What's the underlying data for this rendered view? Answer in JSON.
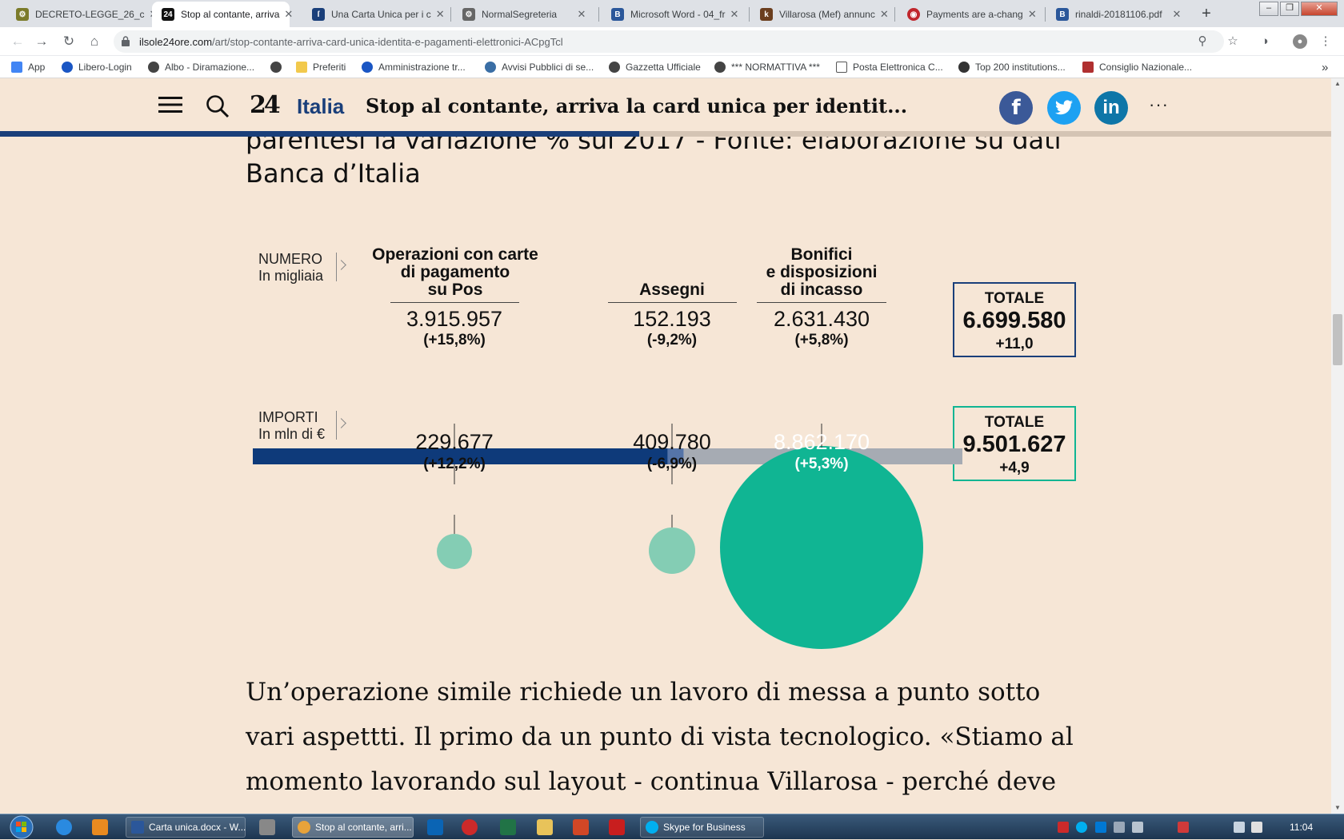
{
  "browser": {
    "tabs": [
      {
        "label": "DECRETO-LEGGE_26_c",
        "color": "#7b7b2a",
        "active": false
      },
      {
        "label": "Stop al contante, arriva",
        "color": "#111111",
        "active": true
      },
      {
        "label": "Una Carta Unica per i c",
        "color": "#1a3f7a",
        "active": false
      },
      {
        "label": "NormalSegreteria",
        "color": "#555555",
        "active": false
      },
      {
        "label": "Microsoft Word - 04_fr",
        "color": "#2b579a",
        "active": false
      },
      {
        "label": "Villarosa (Mef) annunc",
        "color": "#6b3e1e",
        "active": false
      },
      {
        "label": "Payments are a-chang",
        "color": "#c0262c",
        "active": false
      },
      {
        "label": "rinaldi-20181106.pdf",
        "color": "#2b579a",
        "active": false
      }
    ],
    "new_tab": "+",
    "url_domain": "ilsole24ore.com",
    "url_path": "/art/stop-contante-arriva-card-unica-identita-e-pagamenti-elettronici-ACpgTcl",
    "bookmarks": [
      {
        "label": "App",
        "color": "#4285f4"
      },
      {
        "label": "Libero-Login",
        "color": "#1a56c4"
      },
      {
        "label": "Albo - Diramazione...",
        "color": "#444444"
      },
      {
        "label": "",
        "color": "#444444"
      },
      {
        "label": "Preferiti",
        "color": "#f2c94c"
      },
      {
        "label": "Amministrazione tr...",
        "color": "#1a56c4"
      },
      {
        "label": "Avvisi Pubblici di se...",
        "color": "#3a6ea5"
      },
      {
        "label": "Gazzetta Ufficiale",
        "color": "#444444"
      },
      {
        "label": "*** NORMATTIVA ***",
        "color": "#444444"
      },
      {
        "label": "Posta Elettronica C...",
        "color": "#555555"
      },
      {
        "label": "Top 200 institutions...",
        "color": "#333333"
      },
      {
        "label": "Consiglio Nazionale...",
        "color": "#b03030"
      }
    ],
    "bookmarks_more": "»"
  },
  "header": {
    "logo": "24",
    "section": "Italia",
    "title": "Stop al contante, arriva la card unica per identit...",
    "social": [
      {
        "name": "facebook",
        "glyph": "f",
        "color": "#3b5998"
      },
      {
        "name": "twitter",
        "glyph": "t",
        "color": "#1da1f2"
      },
      {
        "name": "linkedin",
        "glyph": "in",
        "color": "#0e76a8"
      }
    ],
    "more": "···",
    "progress": 0.48,
    "colors": {
      "accent": "#1a3f7a"
    }
  },
  "article": {
    "caption_line1": "parentesi la variazione % sul 2017 - Fonte: elaborazione su dati",
    "caption_line2": "Banca d’Italia",
    "body": "Un’operazione simile richiede un lavoro di messa a punto sotto vari aspettti. Il primo da un punto di vista tecnologico. «Stiamo al momento lavorando sul layout - continua Villarosa - perché deve"
  },
  "chart_data": {
    "type": "bar",
    "numero_label_1": "NUMERO",
    "numero_label_2": "In migliaia",
    "importi_label_1": "IMPORTI",
    "importi_label_2": "In mln di €",
    "categories": [
      {
        "head": [
          "Operazioni con carte",
          "di pagamento",
          "su Pos"
        ],
        "numero": 3915957,
        "numero_text": "3.915.957",
        "numero_pct": "(+15,8%)",
        "importo": 229677,
        "importo_text": "229.677",
        "importo_pct": "(+12,2%)",
        "color_bar": "#0e3a7a",
        "color_circle": "#84cdb4"
      },
      {
        "head": [
          "Assegni"
        ],
        "numero": 152193,
        "numero_text": "152.193",
        "numero_pct": "(-9,2%)",
        "importo": 409780,
        "importo_text": "409.780",
        "importo_pct": "(-6,9%)",
        "color_bar": "#5574a8",
        "color_circle": "#84cdb4"
      },
      {
        "head": [
          "Bonifici",
          "e disposizioni",
          "di incasso"
        ],
        "numero": 2631430,
        "numero_text": "2.631.430",
        "numero_pct": "(+5,8%)",
        "importo": 8862170,
        "importo_text": "8.862.170",
        "importo_pct": "(+5,3%)",
        "color_bar": "#a6abb3",
        "color_circle": "#10b593"
      }
    ],
    "totale_numero": {
      "label": "TOTALE",
      "value": "6.699.580",
      "pct": "+11,0",
      "border": "#1a3f7a"
    },
    "totale_importi": {
      "label": "TOTALE",
      "value": "9.501.627",
      "pct": "+4,9",
      "border": "#10b593"
    }
  },
  "taskbar": {
    "apps": [
      {
        "label": "Carta unica.docx - W...",
        "color": "#2b579a",
        "active": false
      },
      {
        "label": "Stop al contante, arri...",
        "color": "#e8a33a",
        "active": true
      },
      {
        "label": "Skype for Business",
        "color": "#00aff0",
        "active": false
      }
    ],
    "clock": "11:04"
  }
}
